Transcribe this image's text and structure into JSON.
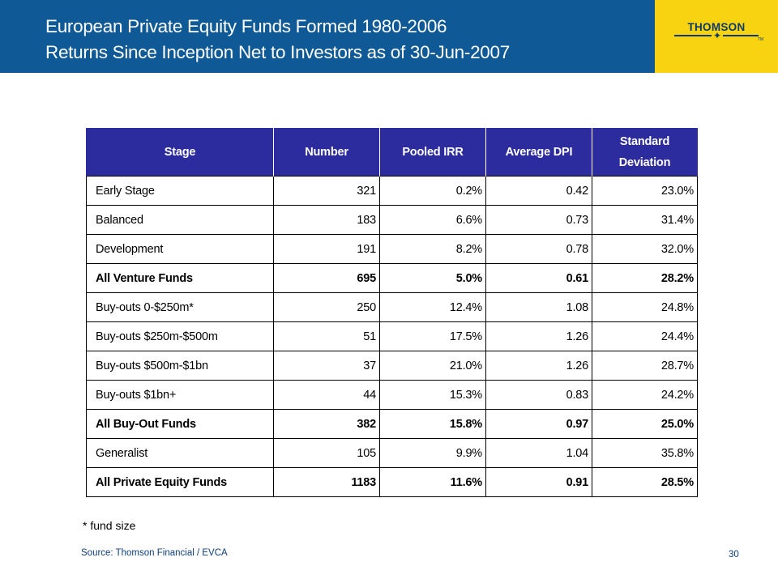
{
  "header": {
    "title_line1": "European Private Equity Funds Formed 1980-2006",
    "title_line2": "Returns Since Inception Net to Investors as of 30-Jun-2007",
    "background_color": "#0f5a96"
  },
  "logo": {
    "text": "THOMSON",
    "tm": "TM",
    "background_color": "#f7d312"
  },
  "table": {
    "header_color": "#2c2c9f",
    "columns": [
      "Stage",
      "Number",
      "Pooled IRR",
      "Average DPI",
      "Standard Deviation"
    ],
    "rows": [
      {
        "stage": "Early Stage",
        "number": "321",
        "irr": "0.2%",
        "dpi": "0.42",
        "sd": "23.0%",
        "bold": false
      },
      {
        "stage": "Balanced",
        "number": "183",
        "irr": "6.6%",
        "dpi": "0.73",
        "sd": "31.4%",
        "bold": false
      },
      {
        "stage": "Development",
        "number": "191",
        "irr": "8.2%",
        "dpi": "0.78",
        "sd": "32.0%",
        "bold": false
      },
      {
        "stage": "All Venture Funds",
        "number": "695",
        "irr": "5.0%",
        "dpi": "0.61",
        "sd": "28.2%",
        "bold": true
      },
      {
        "stage": "Buy-outs 0-$250m*",
        "number": "250",
        "irr": "12.4%",
        "dpi": "1.08",
        "sd": "24.8%",
        "bold": false
      },
      {
        "stage": "Buy-outs $250m-$500m",
        "number": "51",
        "irr": "17.5%",
        "dpi": "1.26",
        "sd": "24.4%",
        "bold": false
      },
      {
        "stage": "Buy-outs $500m-$1bn",
        "number": "37",
        "irr": "21.0%",
        "dpi": "1.26",
        "sd": "28.7%",
        "bold": false
      },
      {
        "stage": "Buy-outs $1bn+",
        "number": "44",
        "irr": "15.3%",
        "dpi": "0.83",
        "sd": "24.2%",
        "bold": false
      },
      {
        "stage": "All Buy-Out Funds",
        "number": "382",
        "irr": "15.8%",
        "dpi": "0.97",
        "sd": "25.0%",
        "bold": true
      },
      {
        "stage": "Generalist",
        "number": "105",
        "irr": "9.9%",
        "dpi": "1.04",
        "sd": "35.8%",
        "bold": false
      },
      {
        "stage": "All Private Equity Funds",
        "number": "1183",
        "irr": "11.6%",
        "dpi": "0.91",
        "sd": "28.5%",
        "bold": true
      }
    ]
  },
  "footnote": "* fund size",
  "source": "Source: Thomson Financial / EVCA",
  "page_number": "30"
}
